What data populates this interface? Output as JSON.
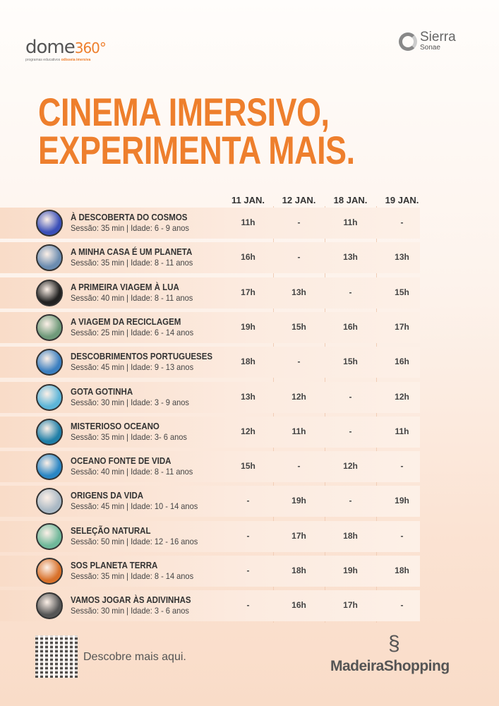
{
  "logos": {
    "dome_main": "dome",
    "dome_num": "360°",
    "dome_sub_a": "programas educativos",
    "dome_sub_b": "odisseia imersiva",
    "sierra": "Sierra",
    "sonae": "Sonae",
    "madeira": "MadeiraShopping"
  },
  "title": {
    "line1": "CINEMA IMERSIVO,",
    "line2": "EXPERIMENTA MAIS."
  },
  "columns": [
    "11 JAN.",
    "12 JAN.",
    "18 JAN.",
    "19 JAN."
  ],
  "sessions": [
    {
      "name": "À DESCOBERTA DO COSMOS",
      "info": "Sessão: 35 min | Idade: 6 - 9 anos",
      "times": [
        "11h",
        "-",
        "11h",
        "-"
      ],
      "color": "#3a4fb8"
    },
    {
      "name": "A MINHA CASA É UM PLANETA",
      "info": "Sessão: 35 min | Idade: 8 - 11 anos",
      "times": [
        "16h",
        "-",
        "13h",
        "13h"
      ],
      "color": "#6b8cb0"
    },
    {
      "name": "A PRIMEIRA VIAGEM À LUA",
      "info": "Sessão: 40 min | Idade: 8 - 11 anos",
      "times": [
        "17h",
        "13h",
        "-",
        "15h"
      ],
      "color": "#222"
    },
    {
      "name": "A VIAGEM DA RECICLAGEM",
      "info": "Sessão: 25 min | Idade: 6 - 14 anos",
      "times": [
        "19h",
        "15h",
        "16h",
        "17h"
      ],
      "color": "#6f9a7a"
    },
    {
      "name": "DESCOBRIMENTOS PORTUGUESES",
      "info": "Sessão: 45 min | Idade: 9 - 13 anos",
      "times": [
        "18h",
        "-",
        "15h",
        "16h"
      ],
      "color": "#3b7fc0"
    },
    {
      "name": "GOTA GOTINHA",
      "info": "Sessão: 30 min | Idade: 3 - 9 anos",
      "times": [
        "13h",
        "12h",
        "-",
        "12h"
      ],
      "color": "#5cb5d8"
    },
    {
      "name": "MISTERIOSO OCEANO",
      "info": "Sessão: 35 min | Idade: 3- 6 anos",
      "times": [
        "12h",
        "11h",
        "-",
        "11h"
      ],
      "color": "#1f7fa8"
    },
    {
      "name": "OCEANO FONTE DE VIDA",
      "info": "Sessão: 40 min | Idade: 8 - 11 anos",
      "times": [
        "15h",
        "-",
        "12h",
        "-"
      ],
      "color": "#2a86c4"
    },
    {
      "name": "ORIGENS DA VIDA",
      "info": "Sessão: 45 min | Idade: 10 - 14 anos",
      "times": [
        "-",
        "19h",
        "-",
        "19h"
      ],
      "color": "#a9b8c4"
    },
    {
      "name": "SELEÇÃO NATURAL",
      "info": "Sessão: 50 min | Idade: 12 - 16 anos",
      "times": [
        "-",
        "17h",
        "18h",
        "-"
      ],
      "color": "#6fb89a"
    },
    {
      "name": "SOS PLANETA TERRA",
      "info": "Sessão: 35 min | Idade: 8 - 14 anos",
      "times": [
        "-",
        "18h",
        "19h",
        "18h"
      ],
      "color": "#d8712a"
    },
    {
      "name": "VAMOS JOGAR ÀS ADIVINHAS",
      "info": "Sessão: 30 min | Idade: 3 - 6 anos",
      "times": [
        "-",
        "16h",
        "17h",
        "-"
      ],
      "color": "#555"
    }
  ],
  "footer": {
    "cta": "Descobre mais aqui."
  },
  "accent": "#ee7f2d"
}
